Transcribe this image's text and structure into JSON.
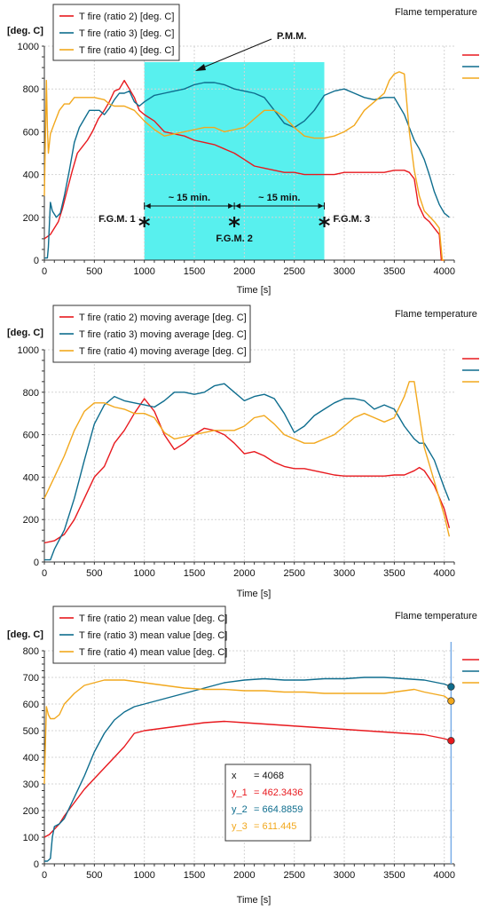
{
  "chart_data": [
    {
      "type": "line",
      "title": "Flame temperature",
      "ylabel": "[deg. C]",
      "xlabel": "Time [s]",
      "xlim": [
        0,
        4100
      ],
      "ylim": [
        0,
        1000
      ],
      "xticks": [
        0,
        500,
        1000,
        1500,
        2000,
        2500,
        3000,
        3500,
        4000
      ],
      "yticks": [
        0,
        200,
        400,
        600,
        800,
        1000
      ],
      "grid": true,
      "legend_position": "top-left",
      "series": [
        {
          "name": "T fire (ratio 2) [deg. C]",
          "color": "#e8191e",
          "x": [
            0,
            60,
            100,
            140,
            180,
            230,
            280,
            330,
            380,
            430,
            480,
            540,
            600,
            650,
            700,
            750,
            800,
            850,
            900,
            950,
            1000,
            1100,
            1200,
            1300,
            1400,
            1500,
            1600,
            1700,
            1800,
            1900,
            2000,
            2100,
            2200,
            2300,
            2400,
            2500,
            2600,
            2700,
            2800,
            2900,
            3000,
            3100,
            3200,
            3300,
            3400,
            3500,
            3600,
            3650,
            3700,
            3740,
            3800,
            3850,
            3900,
            3950,
            3970,
            4000
          ],
          "y": [
            100,
            120,
            150,
            180,
            240,
            330,
            420,
            500,
            530,
            560,
            600,
            660,
            700,
            740,
            790,
            800,
            840,
            800,
            760,
            700,
            680,
            650,
            600,
            590,
            580,
            560,
            550,
            540,
            520,
            500,
            470,
            440,
            430,
            420,
            410,
            410,
            400,
            400,
            400,
            400,
            410,
            410,
            410,
            410,
            410,
            420,
            420,
            410,
            380,
            260,
            200,
            180,
            150,
            120,
            0,
            0
          ]
        },
        {
          "name": "T fire (ratio 3) [deg. C]",
          "color": "#0e6d8e",
          "x": [
            0,
            30,
            40,
            60,
            80,
            120,
            160,
            200,
            250,
            300,
            350,
            400,
            450,
            500,
            550,
            600,
            650,
            700,
            750,
            800,
            850,
            900,
            950,
            1000,
            1100,
            1200,
            1300,
            1400,
            1500,
            1600,
            1700,
            1800,
            1900,
            2000,
            2100,
            2200,
            2300,
            2400,
            2500,
            2600,
            2700,
            2800,
            2900,
            3000,
            3100,
            3200,
            3300,
            3400,
            3500,
            3600,
            3650,
            3700,
            3750,
            3800,
            3850,
            3900,
            3950,
            4000,
            4050
          ],
          "y": [
            10,
            10,
            60,
            270,
            230,
            200,
            220,
            300,
            420,
            550,
            620,
            660,
            700,
            700,
            700,
            680,
            710,
            750,
            780,
            780,
            790,
            740,
            720,
            740,
            770,
            780,
            790,
            800,
            820,
            830,
            830,
            820,
            800,
            790,
            780,
            760,
            700,
            640,
            620,
            650,
            700,
            770,
            790,
            800,
            780,
            760,
            750,
            760,
            760,
            680,
            620,
            560,
            520,
            470,
            400,
            320,
            260,
            220,
            200
          ]
        },
        {
          "name": "T fire (ratio 4) [deg. C]",
          "color": "#f2a81d",
          "x": [
            0,
            20,
            30,
            40,
            60,
            100,
            150,
            200,
            250,
            300,
            400,
            500,
            600,
            650,
            700,
            800,
            900,
            1000,
            1100,
            1200,
            1300,
            1400,
            1500,
            1600,
            1700,
            1800,
            1900,
            2000,
            2100,
            2200,
            2300,
            2400,
            2500,
            2600,
            2700,
            2800,
            2900,
            3000,
            3100,
            3200,
            3300,
            3400,
            3450,
            3500,
            3550,
            3600,
            3650,
            3700,
            3750,
            3800,
            3900,
            3950,
            3980,
            4000
          ],
          "y": [
            300,
            840,
            620,
            500,
            590,
            640,
            700,
            730,
            730,
            760,
            760,
            760,
            750,
            730,
            720,
            720,
            700,
            650,
            610,
            580,
            590,
            600,
            610,
            620,
            620,
            600,
            610,
            620,
            660,
            700,
            700,
            670,
            620,
            580,
            570,
            570,
            580,
            600,
            630,
            700,
            740,
            780,
            840,
            870,
            880,
            870,
            600,
            420,
            300,
            230,
            180,
            150,
            0,
            0
          ]
        }
      ],
      "annotations": {
        "pmm_label": "P.M.M.",
        "fgm1_label": "F.G.M. 1",
        "fgm2_label": "F.G.M. 2",
        "fgm3_label": "F.G.M. 3",
        "interval1_label": "~ 15 min.",
        "interval2_label": "~ 15 min.",
        "star_symbol": "*",
        "highlight_range": [
          1000,
          2800
        ],
        "highlight_color": "#58f0ee",
        "fgm_times": [
          1000,
          1900,
          2800
        ]
      }
    },
    {
      "type": "line",
      "title": "Flame temperature",
      "ylabel": "[deg. C]",
      "xlabel": "Time [s]",
      "xlim": [
        0,
        4100
      ],
      "ylim": [
        0,
        1000
      ],
      "xticks": [
        0,
        500,
        1000,
        1500,
        2000,
        2500,
        3000,
        3500,
        4000
      ],
      "yticks": [
        0,
        200,
        400,
        600,
        800,
        1000
      ],
      "grid": true,
      "legend_position": "top-left",
      "series": [
        {
          "name": "T fire (ratio 2) moving average [deg. C]",
          "color": "#e8191e",
          "x": [
            0,
            100,
            200,
            300,
            400,
            500,
            600,
            700,
            800,
            900,
            1000,
            1100,
            1200,
            1300,
            1400,
            1500,
            1600,
            1700,
            1800,
            1900,
            2000,
            2100,
            2200,
            2300,
            2400,
            2500,
            2600,
            2700,
            2800,
            2900,
            3000,
            3100,
            3200,
            3300,
            3400,
            3500,
            3600,
            3700,
            3750,
            3800,
            3900,
            4000,
            4050
          ],
          "y": [
            90,
            100,
            130,
            200,
            300,
            400,
            450,
            560,
            620,
            700,
            770,
            710,
            600,
            530,
            560,
            600,
            630,
            620,
            600,
            560,
            510,
            520,
            500,
            470,
            450,
            440,
            440,
            430,
            420,
            410,
            405,
            405,
            405,
            405,
            405,
            410,
            410,
            430,
            445,
            430,
            360,
            250,
            160
          ]
        },
        {
          "name": "T fire (ratio 3) moving average [deg. C]",
          "color": "#0e6d8e",
          "x": [
            0,
            60,
            100,
            200,
            300,
            400,
            500,
            600,
            700,
            800,
            900,
            1000,
            1100,
            1200,
            1300,
            1400,
            1500,
            1600,
            1700,
            1800,
            1900,
            2000,
            2100,
            2200,
            2300,
            2400,
            2500,
            2600,
            2700,
            2800,
            2900,
            3000,
            3100,
            3200,
            3300,
            3400,
            3500,
            3600,
            3700,
            3750,
            3800,
            3900,
            4000,
            4050
          ],
          "y": [
            10,
            10,
            60,
            150,
            300,
            480,
            650,
            740,
            780,
            760,
            750,
            740,
            730,
            760,
            800,
            800,
            790,
            800,
            830,
            840,
            800,
            760,
            780,
            790,
            770,
            700,
            610,
            640,
            690,
            720,
            750,
            770,
            770,
            760,
            720,
            740,
            720,
            640,
            580,
            560,
            560,
            480,
            350,
            290
          ]
        },
        {
          "name": "T fire (ratio 4) moving average [deg. C]",
          "color": "#f2a81d",
          "x": [
            0,
            50,
            100,
            200,
            300,
            400,
            500,
            600,
            700,
            800,
            900,
            1000,
            1100,
            1200,
            1300,
            1400,
            1500,
            1600,
            1700,
            1800,
            1900,
            2000,
            2100,
            2200,
            2300,
            2400,
            2500,
            2600,
            2700,
            2800,
            2900,
            3000,
            3100,
            3200,
            3300,
            3400,
            3500,
            3600,
            3650,
            3700,
            3750,
            3800,
            3900,
            4000,
            4050
          ],
          "y": [
            300,
            350,
            400,
            500,
            620,
            710,
            750,
            750,
            730,
            720,
            700,
            700,
            680,
            610,
            580,
            590,
            600,
            610,
            620,
            620,
            620,
            640,
            680,
            690,
            650,
            600,
            580,
            560,
            560,
            580,
            600,
            640,
            680,
            700,
            680,
            660,
            680,
            780,
            850,
            850,
            690,
            540,
            380,
            220,
            120
          ]
        }
      ]
    },
    {
      "type": "line",
      "title": "Flame temperature",
      "ylabel": "[deg. C]",
      "xlabel": "Time [s]",
      "xlim": [
        0,
        4100
      ],
      "ylim": [
        0,
        800
      ],
      "xticks": [
        0,
        500,
        1000,
        1500,
        2000,
        2500,
        3000,
        3500,
        4000
      ],
      "yticks": [
        0,
        100,
        200,
        300,
        400,
        500,
        600,
        700,
        800
      ],
      "grid": true,
      "legend_position": "top-left",
      "series": [
        {
          "name": "T fire (ratio 2) mean value [deg. C]",
          "color": "#e8191e",
          "x": [
            0,
            50,
            100,
            150,
            200,
            300,
            400,
            500,
            600,
            700,
            800,
            900,
            1000,
            1200,
            1400,
            1600,
            1800,
            2000,
            2200,
            2400,
            2600,
            2800,
            3000,
            3200,
            3400,
            3600,
            3800,
            4000,
            4068
          ],
          "y": [
            100,
            110,
            130,
            150,
            180,
            230,
            280,
            320,
            360,
            400,
            440,
            490,
            500,
            510,
            520,
            530,
            535,
            530,
            525,
            520,
            515,
            510,
            505,
            500,
            495,
            490,
            485,
            470,
            462
          ]
        },
        {
          "name": "T fire (ratio 3) mean value [deg. C]",
          "color": "#0e6d8e",
          "x": [
            0,
            30,
            60,
            80,
            100,
            150,
            200,
            300,
            400,
            500,
            600,
            700,
            800,
            900,
            1000,
            1200,
            1400,
            1600,
            1800,
            2000,
            2200,
            2400,
            2600,
            2800,
            3000,
            3200,
            3400,
            3600,
            3800,
            4000,
            4068
          ],
          "y": [
            10,
            10,
            20,
            100,
            140,
            150,
            170,
            250,
            330,
            420,
            490,
            540,
            570,
            590,
            600,
            620,
            640,
            660,
            680,
            690,
            695,
            690,
            690,
            695,
            695,
            700,
            700,
            695,
            690,
            675,
            665
          ]
        },
        {
          "name": "T fire (ratio 4) mean value [deg. C]",
          "color": "#f2a81d",
          "x": [
            0,
            20,
            40,
            60,
            100,
            150,
            200,
            300,
            400,
            500,
            600,
            700,
            800,
            1000,
            1200,
            1400,
            1600,
            1800,
            2000,
            2200,
            2400,
            2600,
            2800,
            3000,
            3200,
            3400,
            3600,
            3700,
            3800,
            4000,
            4068
          ],
          "y": [
            300,
            590,
            560,
            545,
            545,
            560,
            600,
            640,
            670,
            680,
            690,
            690,
            690,
            680,
            670,
            660,
            655,
            655,
            650,
            650,
            645,
            645,
            640,
            640,
            640,
            640,
            650,
            655,
            645,
            630,
            611
          ]
        }
      ],
      "cursor": {
        "x_value": 4068,
        "x_label": "x",
        "x_text": "= 4068",
        "y1_label": "y_1",
        "y1_text": "= 462.3436",
        "y2_label": "y_2",
        "y2_text": "= 664.8859",
        "y3_label": "y_3",
        "y3_text": "= 611.445",
        "y_values": [
          462.3436,
          664.8859,
          611.445
        ],
        "line_color": "#7aaee8"
      }
    }
  ]
}
